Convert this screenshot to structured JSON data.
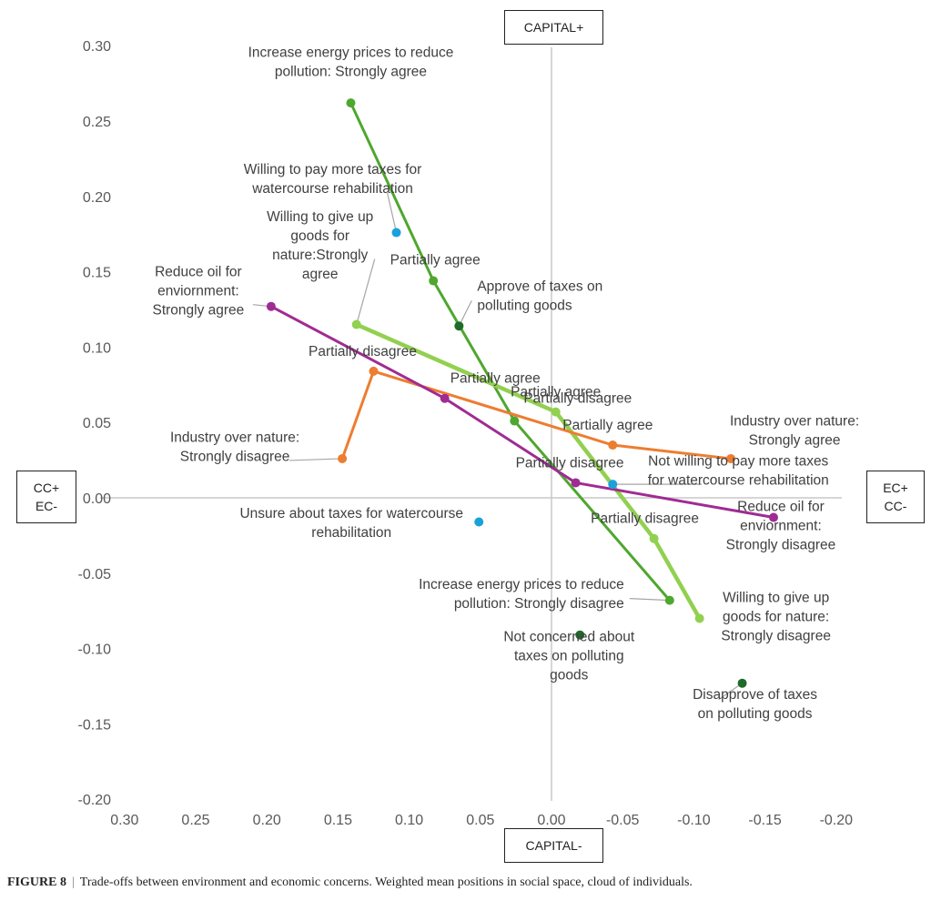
{
  "chart_data": {
    "type": "scatter",
    "title": "",
    "xlabel": "",
    "ylabel": "",
    "xlim": [
      0.3,
      -0.2
    ],
    "ylim": [
      -0.2,
      0.3
    ],
    "x_reversed": true,
    "x_ticks": [
      "0.30",
      "0.25",
      "0.20",
      "0.15",
      "0.10",
      "0.05",
      "0.00",
      "-0.05",
      "-0.10",
      "-0.15",
      "-0.20"
    ],
    "y_ticks": [
      "0.30",
      "0.25",
      "0.20",
      "0.15",
      "0.10",
      "0.05",
      "0.00",
      "-0.05",
      "-0.10",
      "-0.15",
      "-0.20"
    ],
    "grid": false,
    "quadrant_labels": {
      "top": "CAPITAL+",
      "bottom": "CAPITAL-",
      "left": [
        "CC+",
        "EC-"
      ],
      "right": [
        "EC+",
        "CC-"
      ]
    },
    "series": [
      {
        "name": "Increase energy prices to reduce pollution",
        "color": "#4ea72e",
        "line": true,
        "points": [
          {
            "x": 0.141,
            "y": 0.262,
            "label": [
              "Increase energy prices to reduce",
              "pollution: Strongly agree"
            ]
          },
          {
            "x": 0.083,
            "y": 0.144,
            "label": [
              "Partially agree"
            ]
          },
          {
            "x": 0.026,
            "y": 0.051,
            "label": [
              "Partially disagree"
            ]
          },
          {
            "x": -0.083,
            "y": -0.068,
            "label": [
              "Increase energy prices to reduce",
              "pollution: Strongly disagree"
            ]
          }
        ]
      },
      {
        "name": "Willing to give up goods for nature",
        "color": "#92d050",
        "line": true,
        "points": [
          {
            "x": 0.137,
            "y": 0.115,
            "label": [
              "Willing to give up",
              "goods for",
              "nature:Strongly",
              "agree"
            ]
          },
          {
            "x": -0.003,
            "y": 0.057,
            "label": [
              "Partially agree"
            ]
          },
          {
            "x": -0.072,
            "y": -0.027,
            "label": [
              "Partially disagree"
            ]
          },
          {
            "x": -0.104,
            "y": -0.08,
            "label": [
              "Willing to give up",
              "goods for nature:",
              "Strongly disagree"
            ]
          }
        ]
      },
      {
        "name": "Industry over nature",
        "color": "#ed7d31",
        "line": true,
        "points": [
          {
            "x": 0.147,
            "y": 0.026,
            "label": [
              "Industry over nature:",
              "Strongly disagree"
            ]
          },
          {
            "x": 0.125,
            "y": 0.084,
            "label": [
              "Partially disagree"
            ]
          },
          {
            "x": -0.043,
            "y": 0.035,
            "label": [
              "Partially agree"
            ]
          },
          {
            "x": -0.126,
            "y": 0.026,
            "label": [
              "Industry over nature:",
              "Strongly agree"
            ]
          }
        ]
      },
      {
        "name": "Reduce oil for environment",
        "color": "#a02b93",
        "line": true,
        "points": [
          {
            "x": 0.197,
            "y": 0.127,
            "label": [
              "Reduce oil for",
              "enviornment:",
              "Strongly agree"
            ]
          },
          {
            "x": 0.075,
            "y": 0.066,
            "label": [
              "Partially agree"
            ]
          },
          {
            "x": -0.017,
            "y": 0.01,
            "label": [
              "Partially disagree"
            ]
          },
          {
            "x": -0.156,
            "y": -0.013,
            "label": [
              "Reduce oil for",
              "enviornment:",
              "Strongly disagree"
            ]
          }
        ]
      },
      {
        "name": "Taxes on polluting goods",
        "color": "#1e6b2a",
        "line": false,
        "points": [
          {
            "x": 0.065,
            "y": 0.114,
            "label": [
              "Approve of taxes on",
              "polluting goods"
            ]
          },
          {
            "x": -0.02,
            "y": -0.091,
            "label": [
              "Not concerned about",
              "taxes on polluting",
              "goods"
            ]
          },
          {
            "x": -0.134,
            "y": -0.123,
            "label": [
              "Disapprove of taxes",
              "on polluting goods"
            ]
          }
        ]
      },
      {
        "name": "Taxes for watercourse rehabilitation",
        "color": "#1aa1dc",
        "line": false,
        "points": [
          {
            "x": 0.109,
            "y": 0.176,
            "label": [
              "Willing to pay more taxes for",
              "watercourse rehabilitation"
            ]
          },
          {
            "x": 0.051,
            "y": -0.016,
            "label": [
              "Unsure about taxes for watercourse",
              "rehabilitation"
            ]
          },
          {
            "x": -0.043,
            "y": 0.009,
            "label": [
              "Not willing to pay more taxes",
              "for watercourse rehabilitation"
            ]
          }
        ]
      }
    ]
  },
  "caption": {
    "figure_number": "FIGURE 8",
    "separator": "|",
    "text": "Trade-offs between environment and economic concerns. Weighted mean positions in social space, cloud of individuals."
  }
}
